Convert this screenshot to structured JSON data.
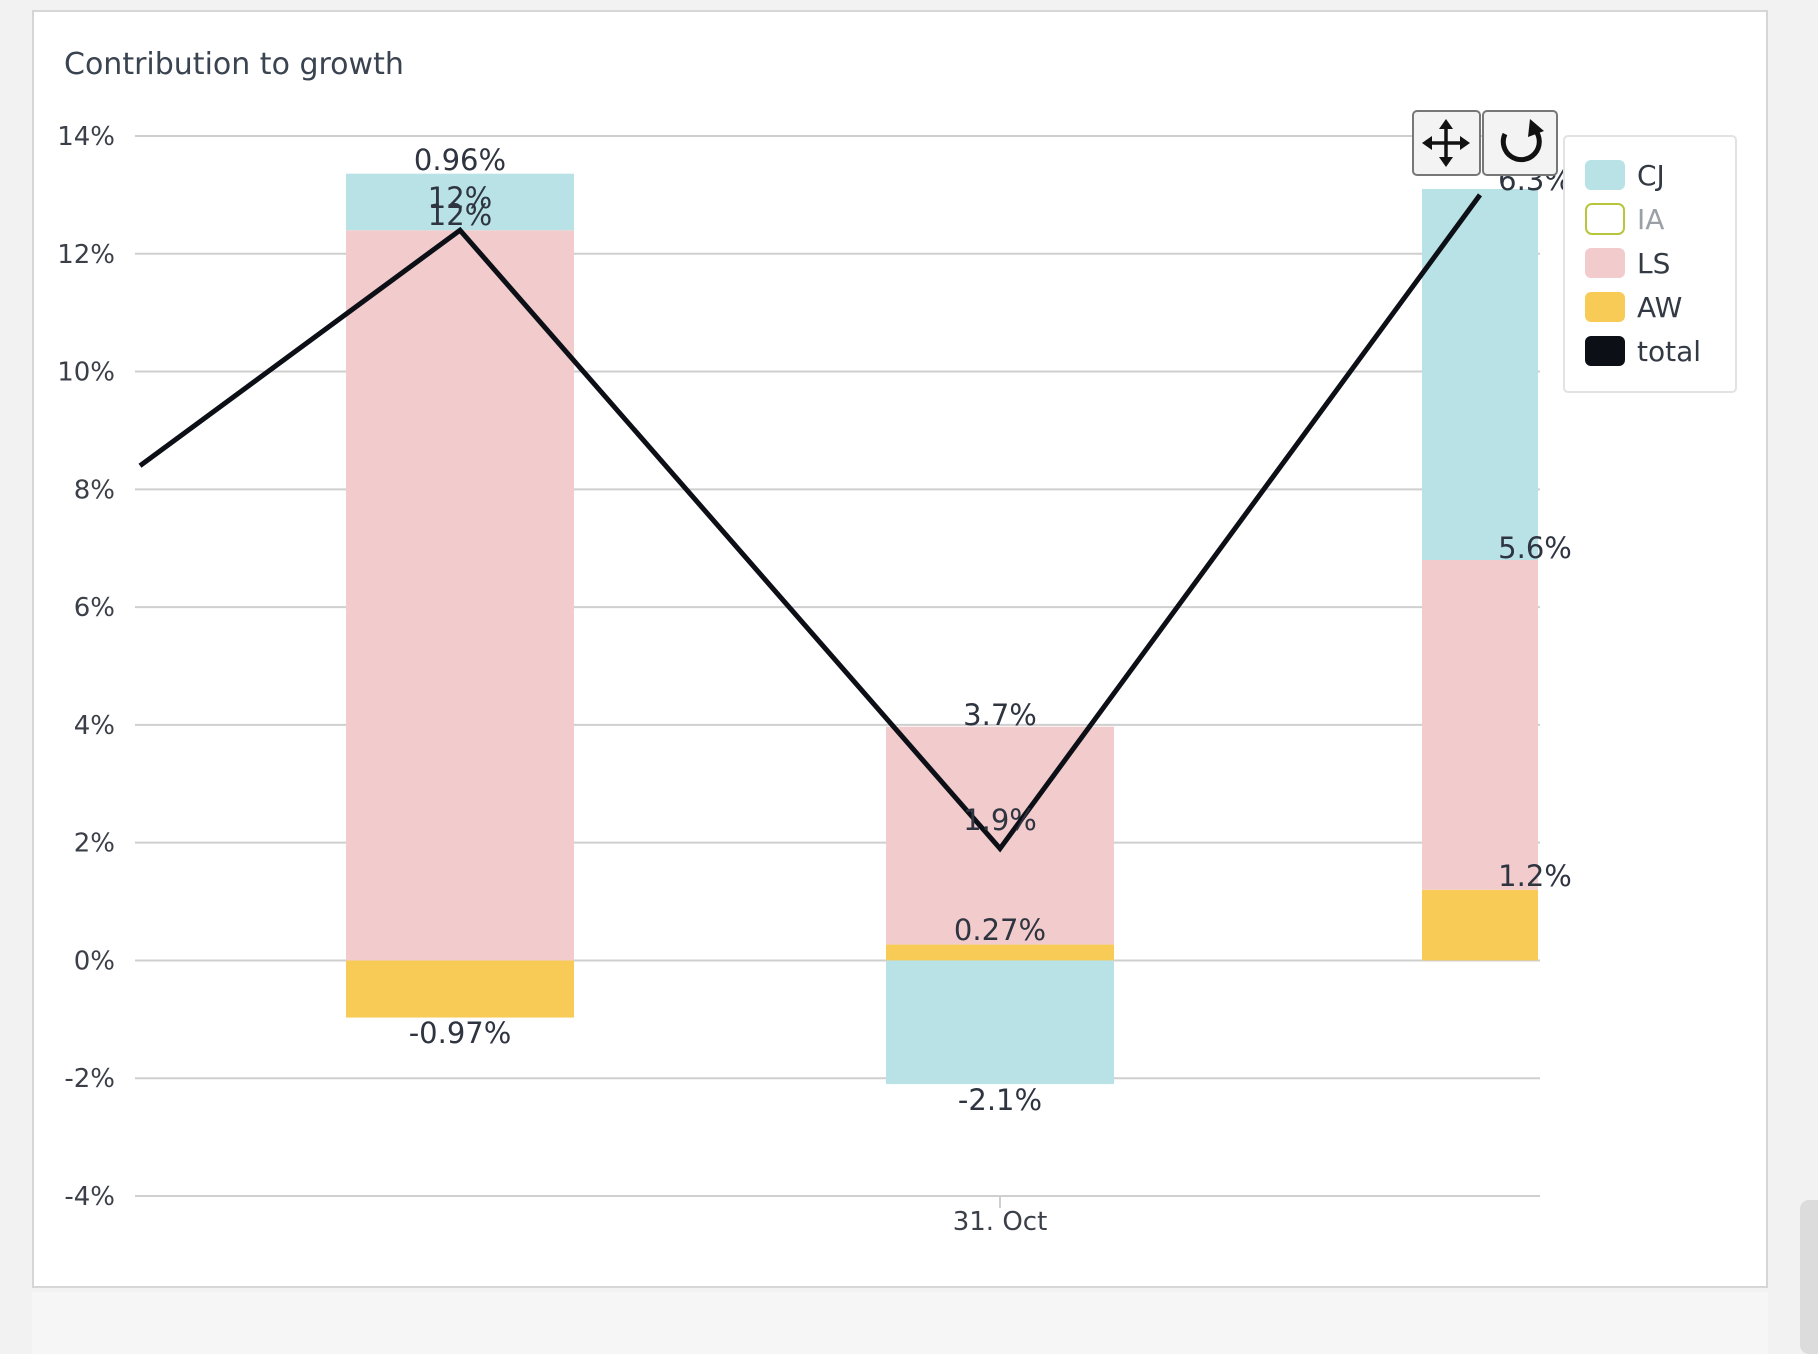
{
  "chart_data": {
    "type": "bar",
    "title": "Contribution to growth",
    "xlabel": "",
    "ylabel": "",
    "ylim": [
      -4,
      14
    ],
    "yticks": [
      14,
      12,
      10,
      8,
      6,
      4,
      2,
      0,
      -2,
      -4
    ],
    "ytick_labels": [
      "14%",
      "12%",
      "10%",
      "8%",
      "6%",
      "4%",
      "2%",
      "0%",
      "-2%",
      "-4%"
    ],
    "x_tick_label": "31. Oct",
    "stacked": true,
    "series": [
      {
        "name": "CJ",
        "color": "#b8e2e6",
        "values": [
          0.96,
          -2.1,
          6.3
        ]
      },
      {
        "name": "IA",
        "color": "#ffffff",
        "values": [
          0,
          0,
          0
        ],
        "hidden": true
      },
      {
        "name": "LS",
        "color": "#f2cccd",
        "values": [
          12.4,
          3.7,
          5.6
        ]
      },
      {
        "name": "AW",
        "color": "#f8cb57",
        "values": [
          -0.97,
          0.27,
          1.2
        ]
      },
      {
        "name": "total",
        "color": "#0c1016",
        "type": "line",
        "values": [
          12.4,
          1.9,
          13.0
        ]
      }
    ],
    "data_labels": [
      [
        "0.96%",
        "12%",
        "12%",
        "-0.97%"
      ],
      [
        "3.7%",
        "1.9%",
        "0.27%",
        "-2.1%"
      ],
      [
        "6.3%",
        "5.6%",
        "1.2%"
      ]
    ],
    "legend": {
      "position": "top-right"
    },
    "grid": true
  },
  "toolbar": {
    "pan_icon": "move-arrows-icon",
    "reset_icon": "rotate-reset-icon"
  }
}
